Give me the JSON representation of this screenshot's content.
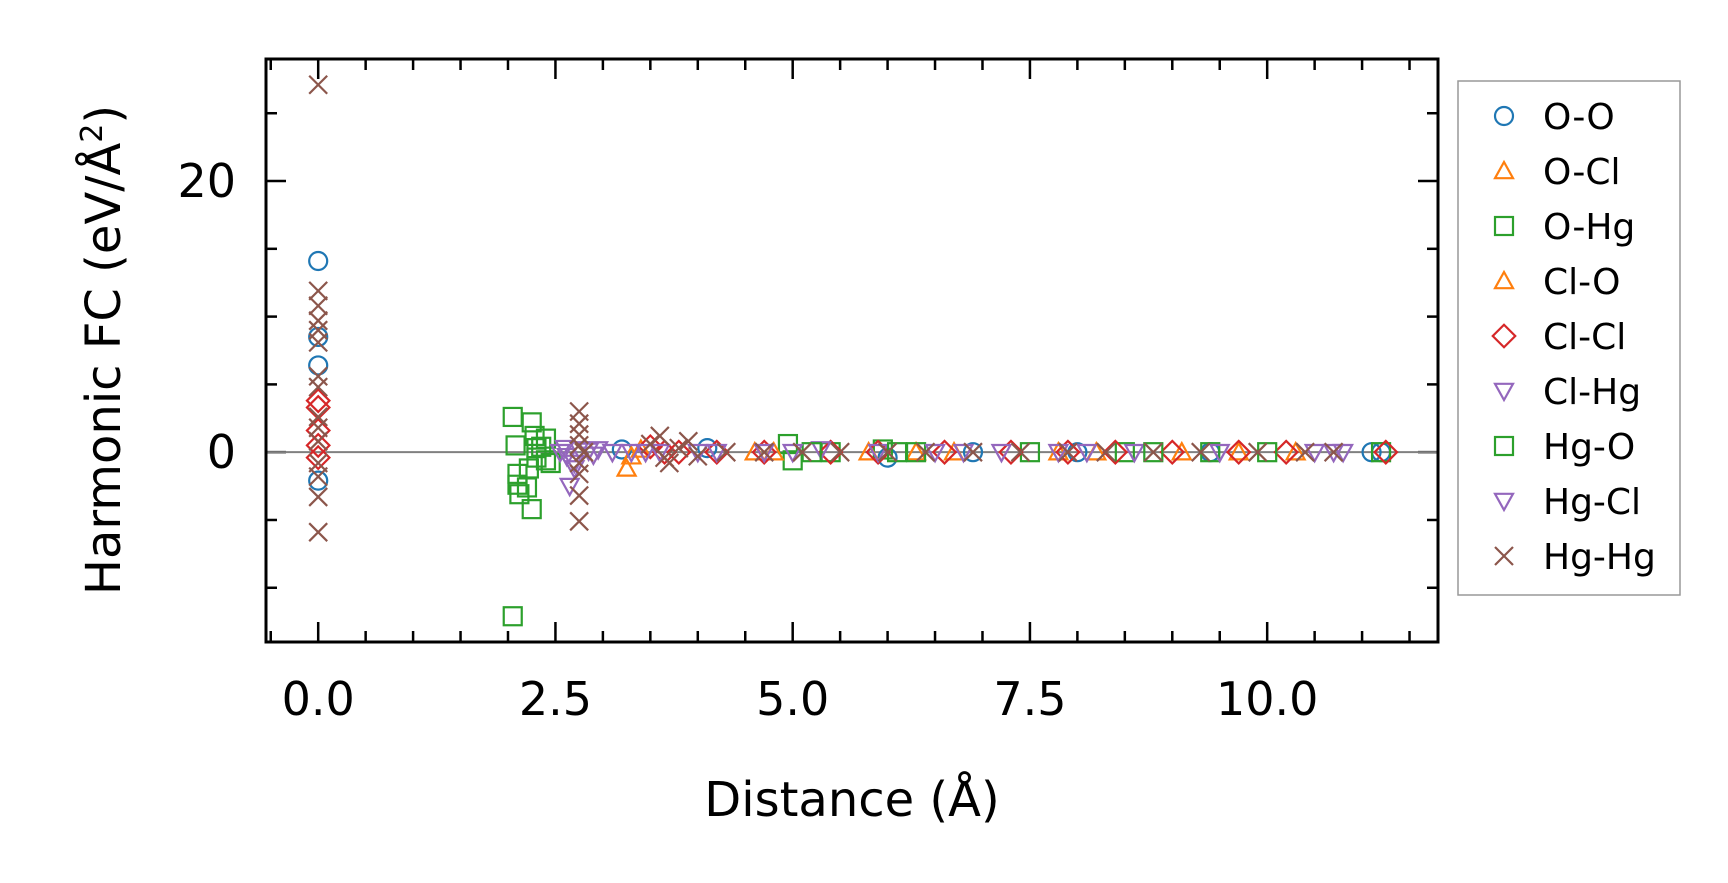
{
  "chart_data": {
    "type": "scatter",
    "xlabel": "Distance (Å)",
    "ylabel_main": "Harmonic FC (eV/Å",
    "ylabel_sup": "2",
    "ylabel_end": ")",
    "xlim": [
      -0.55,
      11.8
    ],
    "ylim": [
      -14,
      29
    ],
    "xticks": [
      0.0,
      2.5,
      5.0,
      7.5,
      10.0
    ],
    "xtick_labels": [
      "0.0",
      "2.5",
      "5.0",
      "7.5",
      "10.0"
    ],
    "yticks": [
      0,
      20
    ],
    "ytick_labels": [
      "0",
      "20"
    ],
    "zero_line": true,
    "legend_position": "outside-right",
    "series": [
      {
        "name": "O-O",
        "color": "#1f77b4",
        "marker": "circle",
        "points": [
          [
            0,
            14.1
          ],
          [
            0,
            8.5
          ],
          [
            0,
            6.4
          ],
          [
            0,
            -2.1
          ],
          [
            3.2,
            0.2
          ],
          [
            4.1,
            0.3
          ],
          [
            6.0,
            -0.4
          ],
          [
            6.9,
            0
          ],
          [
            8.0,
            0
          ],
          [
            9.4,
            0
          ],
          [
            11.1,
            0
          ],
          [
            11.2,
            0
          ]
        ]
      },
      {
        "name": "O-Cl",
        "color": "#ff7f0e",
        "marker": "triangle-up",
        "points": [
          [
            3.25,
            -1.2
          ],
          [
            3.3,
            -0.3
          ],
          [
            4.6,
            0
          ],
          [
            6.3,
            0
          ],
          [
            7.8,
            0
          ],
          [
            9.1,
            0
          ],
          [
            10.3,
            0
          ]
        ]
      },
      {
        "name": "O-Hg",
        "color": "#2ca02c",
        "marker": "square",
        "points": [
          [
            2.05,
            2.6
          ],
          [
            2.05,
            -12.1
          ],
          [
            2.08,
            0.5
          ],
          [
            2.1,
            -2.4
          ],
          [
            2.12,
            -3.1
          ],
          [
            2.1,
            -1.6
          ],
          [
            2.25,
            2.2
          ],
          [
            2.28,
            1.2
          ],
          [
            2.3,
            -0.4
          ],
          [
            2.25,
            -4.2
          ],
          [
            2.35,
            0.4
          ],
          [
            2.4,
            -0.6
          ],
          [
            2.4,
            1.0
          ],
          [
            2.45,
            -0.8
          ],
          [
            4.95,
            0.6
          ],
          [
            5.0,
            -0.6
          ],
          [
            5.4,
            0
          ],
          [
            5.95,
            0.2
          ],
          [
            6.3,
            0
          ],
          [
            7.5,
            0
          ],
          [
            8.5,
            0
          ],
          [
            9.4,
            0
          ],
          [
            11.2,
            0
          ]
        ]
      },
      {
        "name": "Cl-O",
        "color": "#ff7f0e",
        "marker": "triangle-up",
        "points": [
          [
            3.4,
            0.2
          ],
          [
            4.8,
            0
          ],
          [
            5.8,
            0
          ],
          [
            6.7,
            0
          ],
          [
            8.2,
            0
          ],
          [
            9.7,
            0
          ]
        ]
      },
      {
        "name": "Cl-Cl",
        "color": "#d62728",
        "marker": "diamond",
        "points": [
          [
            0,
            3.8
          ],
          [
            0,
            3.3
          ],
          [
            0,
            1.6
          ],
          [
            0,
            0.5
          ],
          [
            0,
            -0.4
          ],
          [
            3.5,
            0.4
          ],
          [
            3.65,
            0
          ],
          [
            3.8,
            0
          ],
          [
            4.2,
            0
          ],
          [
            4.7,
            0
          ],
          [
            5.4,
            0
          ],
          [
            5.9,
            0
          ],
          [
            6.6,
            0
          ],
          [
            7.3,
            0
          ],
          [
            7.9,
            0
          ],
          [
            8.4,
            0
          ],
          [
            9.0,
            0
          ],
          [
            9.7,
            0
          ],
          [
            10.2,
            0
          ],
          [
            11.25,
            0
          ]
        ]
      },
      {
        "name": "Cl-Hg",
        "color": "#9467bd",
        "marker": "triangle-down",
        "points": [
          [
            2.6,
            0.3
          ],
          [
            2.62,
            -0.3
          ],
          [
            2.65,
            -2.5
          ],
          [
            2.7,
            -0.8
          ],
          [
            2.75,
            0.2
          ],
          [
            2.85,
            0.1
          ],
          [
            2.95,
            0.2
          ],
          [
            3.1,
            0
          ],
          [
            3.3,
            0
          ],
          [
            3.6,
            0
          ],
          [
            4.2,
            0
          ],
          [
            4.7,
            0
          ],
          [
            5.3,
            0.2
          ],
          [
            5.9,
            0
          ],
          [
            6.5,
            0
          ],
          [
            7.2,
            0
          ],
          [
            7.8,
            0
          ],
          [
            8.6,
            0
          ],
          [
            9.5,
            0
          ],
          [
            10.5,
            0
          ],
          [
            10.8,
            0
          ]
        ]
      },
      {
        "name": "Hg-O",
        "color": "#2ca02c",
        "marker": "square",
        "points": [
          [
            2.2,
            -2.6
          ],
          [
            2.22,
            -1.2
          ],
          [
            2.3,
            0.3
          ],
          [
            5.2,
            0
          ],
          [
            6.1,
            0
          ],
          [
            8.8,
            0
          ],
          [
            10.0,
            0
          ]
        ]
      },
      {
        "name": "Hg-Cl",
        "color": "#9467bd",
        "marker": "triangle-down",
        "points": [
          [
            2.55,
            0
          ],
          [
            2.7,
            -1.2
          ],
          [
            2.9,
            -0.2
          ],
          [
            3.45,
            0
          ],
          [
            4.0,
            0
          ],
          [
            5.0,
            0
          ],
          [
            6.8,
            0
          ],
          [
            8.1,
            0
          ],
          [
            10.7,
            0
          ]
        ]
      },
      {
        "name": "Hg-Hg",
        "color": "#8c564b",
        "marker": "x",
        "points": [
          [
            0,
            27.1
          ],
          [
            0,
            11.9
          ],
          [
            0,
            10.8
          ],
          [
            0,
            9.7
          ],
          [
            0,
            9.0
          ],
          [
            0,
            8.1
          ],
          [
            0,
            5.6
          ],
          [
            0,
            4.8
          ],
          [
            0,
            2.6
          ],
          [
            0,
            1.8
          ],
          [
            0,
            0.8
          ],
          [
            0,
            -0.8
          ],
          [
            0,
            -1.8
          ],
          [
            0,
            -3.3
          ],
          [
            0,
            -5.9
          ],
          [
            2.75,
            3.0
          ],
          [
            2.75,
            2.1
          ],
          [
            2.75,
            1.3
          ],
          [
            2.75,
            0.5
          ],
          [
            2.75,
            -0.8
          ],
          [
            2.75,
            -1.6
          ],
          [
            2.75,
            -3.2
          ],
          [
            2.75,
            -5.1
          ],
          [
            2.8,
            0
          ],
          [
            3.5,
            0.6
          ],
          [
            3.6,
            1.2
          ],
          [
            3.65,
            -0.4
          ],
          [
            3.7,
            -0.8
          ],
          [
            3.8,
            0.3
          ],
          [
            3.9,
            0.8
          ],
          [
            4.0,
            -0.3
          ],
          [
            4.3,
            0
          ],
          [
            4.7,
            0
          ],
          [
            5.1,
            0
          ],
          [
            5.5,
            0
          ],
          [
            6.0,
            0
          ],
          [
            6.4,
            0
          ],
          [
            6.9,
            0
          ],
          [
            7.4,
            0
          ],
          [
            7.9,
            0
          ],
          [
            8.3,
            0
          ],
          [
            8.8,
            0
          ],
          [
            9.3,
            0
          ],
          [
            9.9,
            0
          ],
          [
            10.4,
            0
          ],
          [
            10.7,
            0
          ]
        ]
      }
    ]
  }
}
